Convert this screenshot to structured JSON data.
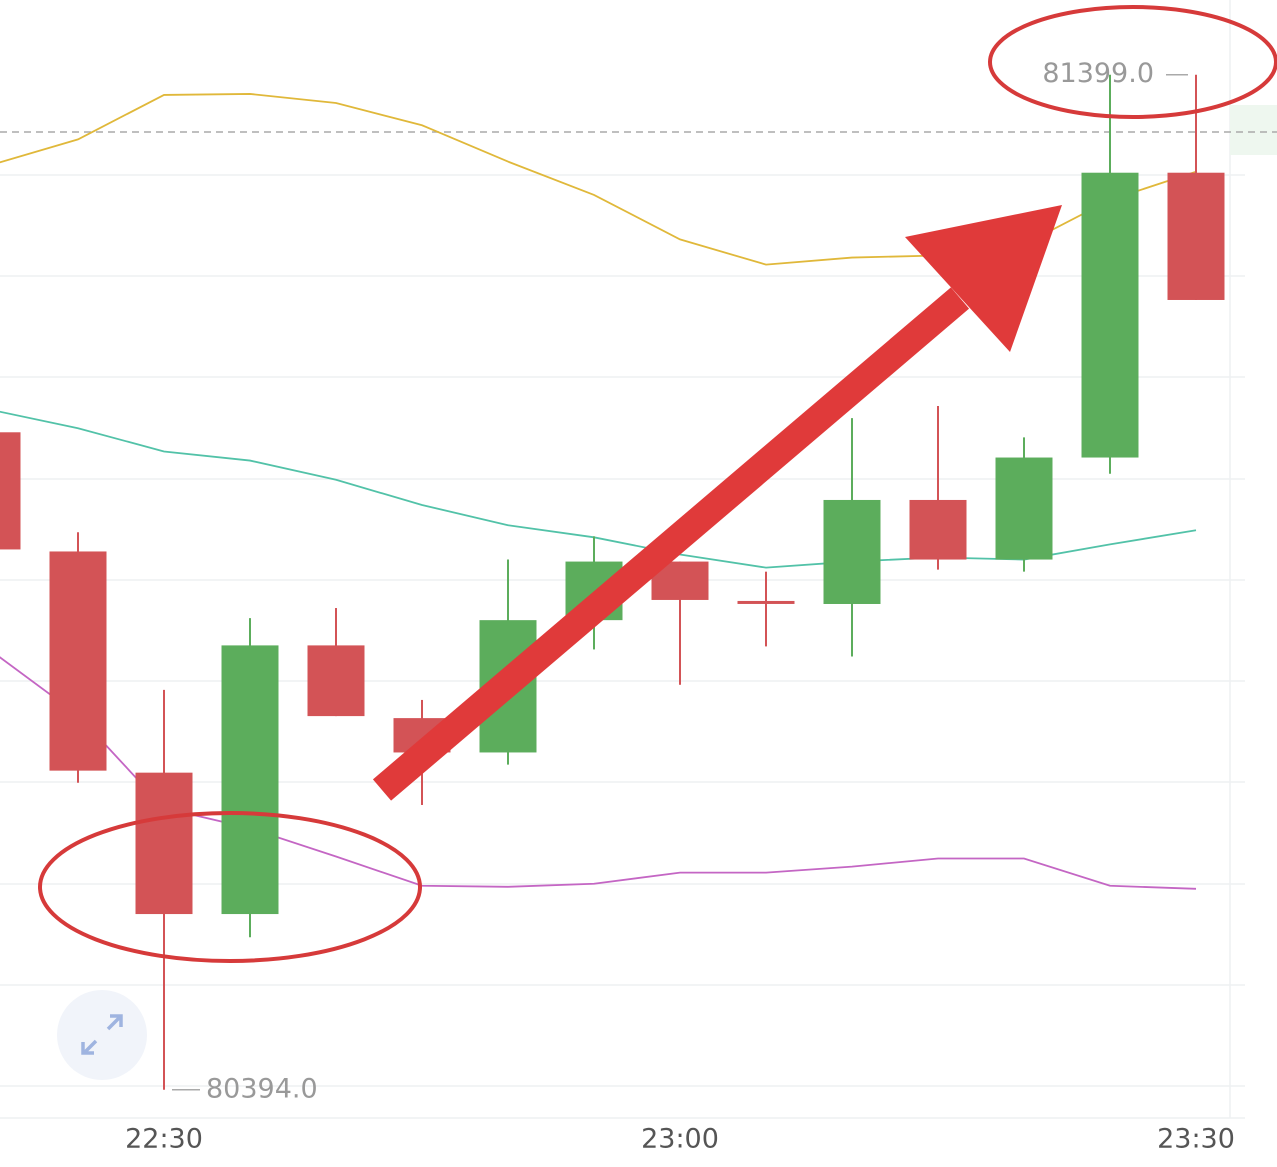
{
  "chart_data": {
    "type": "candlestick",
    "categories": [
      null,
      null,
      "22:30",
      null,
      null,
      null,
      null,
      null,
      "23:00",
      null,
      null,
      null,
      null,
      null,
      "23:30"
    ],
    "open": [
      81045,
      80927,
      80708,
      80568,
      80834,
      80762,
      80728,
      80859,
      80917,
      80878,
      80875,
      80978,
      80919,
      81020,
      81302
    ],
    "high": [
      81057,
      80946,
      80790,
      80861,
      80871,
      80780,
      80919,
      80942,
      80917,
      80907,
      81059,
      81071,
      81040,
      81399,
      81399
    ],
    "low": [
      80919,
      80698,
      80394,
      80545,
      80764,
      80676,
      80716,
      80830,
      80795,
      80833,
      80823,
      80909,
      80907,
      81004,
      81176
    ],
    "close": [
      80929,
      80710,
      80568,
      80834,
      80764,
      80728,
      80859,
      80917,
      80879,
      80876,
      80978,
      80919,
      81020,
      81302,
      81176
    ],
    "up_color": "#5cad5c",
    "down_color": "#d35356",
    "series": [
      {
        "color": "#e0b83a",
        "values": [
          81310,
          81335,
          81379,
          81380,
          81371,
          81349,
          81313,
          81280,
          81236,
          81211,
          81218,
          81220,
          81231,
          81275,
          81303
        ]
      },
      {
        "color": "#52c2a8",
        "values": [
          81067,
          81049,
          81026,
          81017,
          80998,
          80973,
          80953,
          80941,
          80924,
          80911,
          80917,
          80921,
          80919,
          80934,
          80948
        ]
      },
      {
        "color": "#c466c4",
        "values": [
          80828,
          80765,
          80673,
          80653,
          80625,
          80596,
          80595,
          80598,
          80609,
          80609,
          80615,
          80623,
          80623,
          80596,
          80593
        ]
      }
    ],
    "ylim": [
      80374,
      81473
    ],
    "annotations": [
      {
        "value": 81399,
        "label": "81399.0"
      },
      {
        "value": 80394,
        "label": "80394.0"
      }
    ]
  }
}
